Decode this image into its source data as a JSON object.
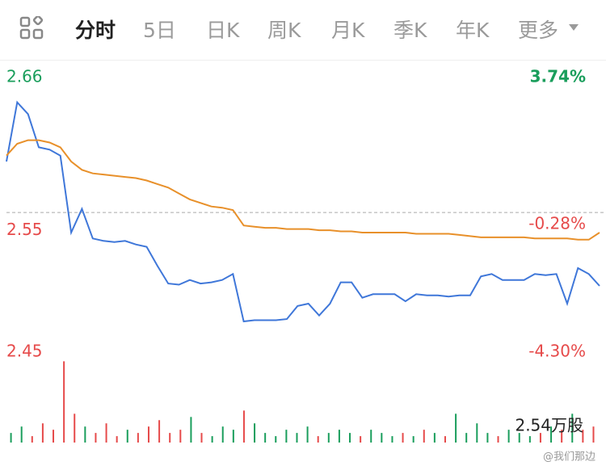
{
  "tabs": [
    "分时",
    "5日",
    "日K",
    "周K",
    "月K",
    "季K",
    "年K",
    "更多"
  ],
  "chart_data": {
    "type": "line",
    "ylim": [
      2.45,
      2.66
    ],
    "yticks": [
      2.66,
      2.55,
      2.45
    ],
    "y2lim": [
      -4.3,
      3.74
    ],
    "y2ticks": [
      {
        "value": 3.74,
        "label": "3.74%"
      },
      {
        "value": -0.28,
        "label": "-0.28%"
      },
      {
        "value": -4.3,
        "label": "-4.30%"
      }
    ],
    "reference_line": 2.557,
    "series": [
      {
        "color": "#3f77d9",
        "values": [
          2.6,
          2.65,
          2.64,
          2.612,
          2.61,
          2.605,
          2.54,
          2.56,
          2.535,
          2.533,
          2.532,
          2.533,
          2.53,
          2.528,
          2.512,
          2.497,
          2.496,
          2.5,
          2.497,
          2.498,
          2.5,
          2.505,
          2.465,
          2.466,
          2.466,
          2.466,
          2.467,
          2.478,
          2.48,
          2.47,
          2.48,
          2.498,
          2.498,
          2.485,
          2.488,
          2.488,
          2.488,
          2.482,
          2.488,
          2.487,
          2.487,
          2.486,
          2.487,
          2.487,
          2.503,
          2.505,
          2.5,
          2.5,
          2.5,
          2.505,
          2.504,
          2.505,
          2.48,
          2.51,
          2.505,
          2.495
        ]
      },
      {
        "color": "#e8902a",
        "values": [
          2.605,
          2.615,
          2.618,
          2.618,
          2.616,
          2.612,
          2.6,
          2.593,
          2.59,
          2.589,
          2.588,
          2.587,
          2.586,
          2.584,
          2.581,
          2.578,
          2.573,
          2.568,
          2.565,
          2.562,
          2.561,
          2.559,
          2.546,
          2.545,
          2.544,
          2.544,
          2.543,
          2.543,
          2.543,
          2.542,
          2.542,
          2.541,
          2.541,
          2.54,
          2.54,
          2.54,
          2.54,
          2.54,
          2.539,
          2.539,
          2.539,
          2.539,
          2.538,
          2.537,
          2.536,
          2.536,
          2.536,
          2.536,
          2.536,
          2.535,
          2.535,
          2.535,
          2.535,
          2.534,
          2.534,
          2.54
        ]
      }
    ],
    "volume": {
      "label": "2.54万股",
      "vlim": [
        0,
        2.6
      ],
      "values": [
        0.3,
        0.5,
        0.2,
        0.6,
        0.4,
        2.54,
        0.9,
        0.5,
        0.3,
        0.6,
        0.2,
        0.4,
        0.3,
        0.5,
        0.7,
        0.3,
        0.4,
        0.8,
        0.3,
        0.2,
        0.5,
        0.4,
        1.0,
        0.6,
        0.3,
        0.2,
        0.4,
        0.3,
        0.5,
        0.2,
        0.3,
        0.4,
        0.3,
        0.2,
        0.4,
        0.3,
        0.2,
        0.3,
        0.2,
        0.4,
        0.3,
        0.2,
        0.9,
        0.3,
        0.6,
        0.3,
        0.2,
        0.4,
        0.3,
        0.2,
        0.3,
        0.5,
        0.4,
        0.9,
        0.4,
        0.5
      ]
    }
  },
  "watermark": "@我们那边"
}
